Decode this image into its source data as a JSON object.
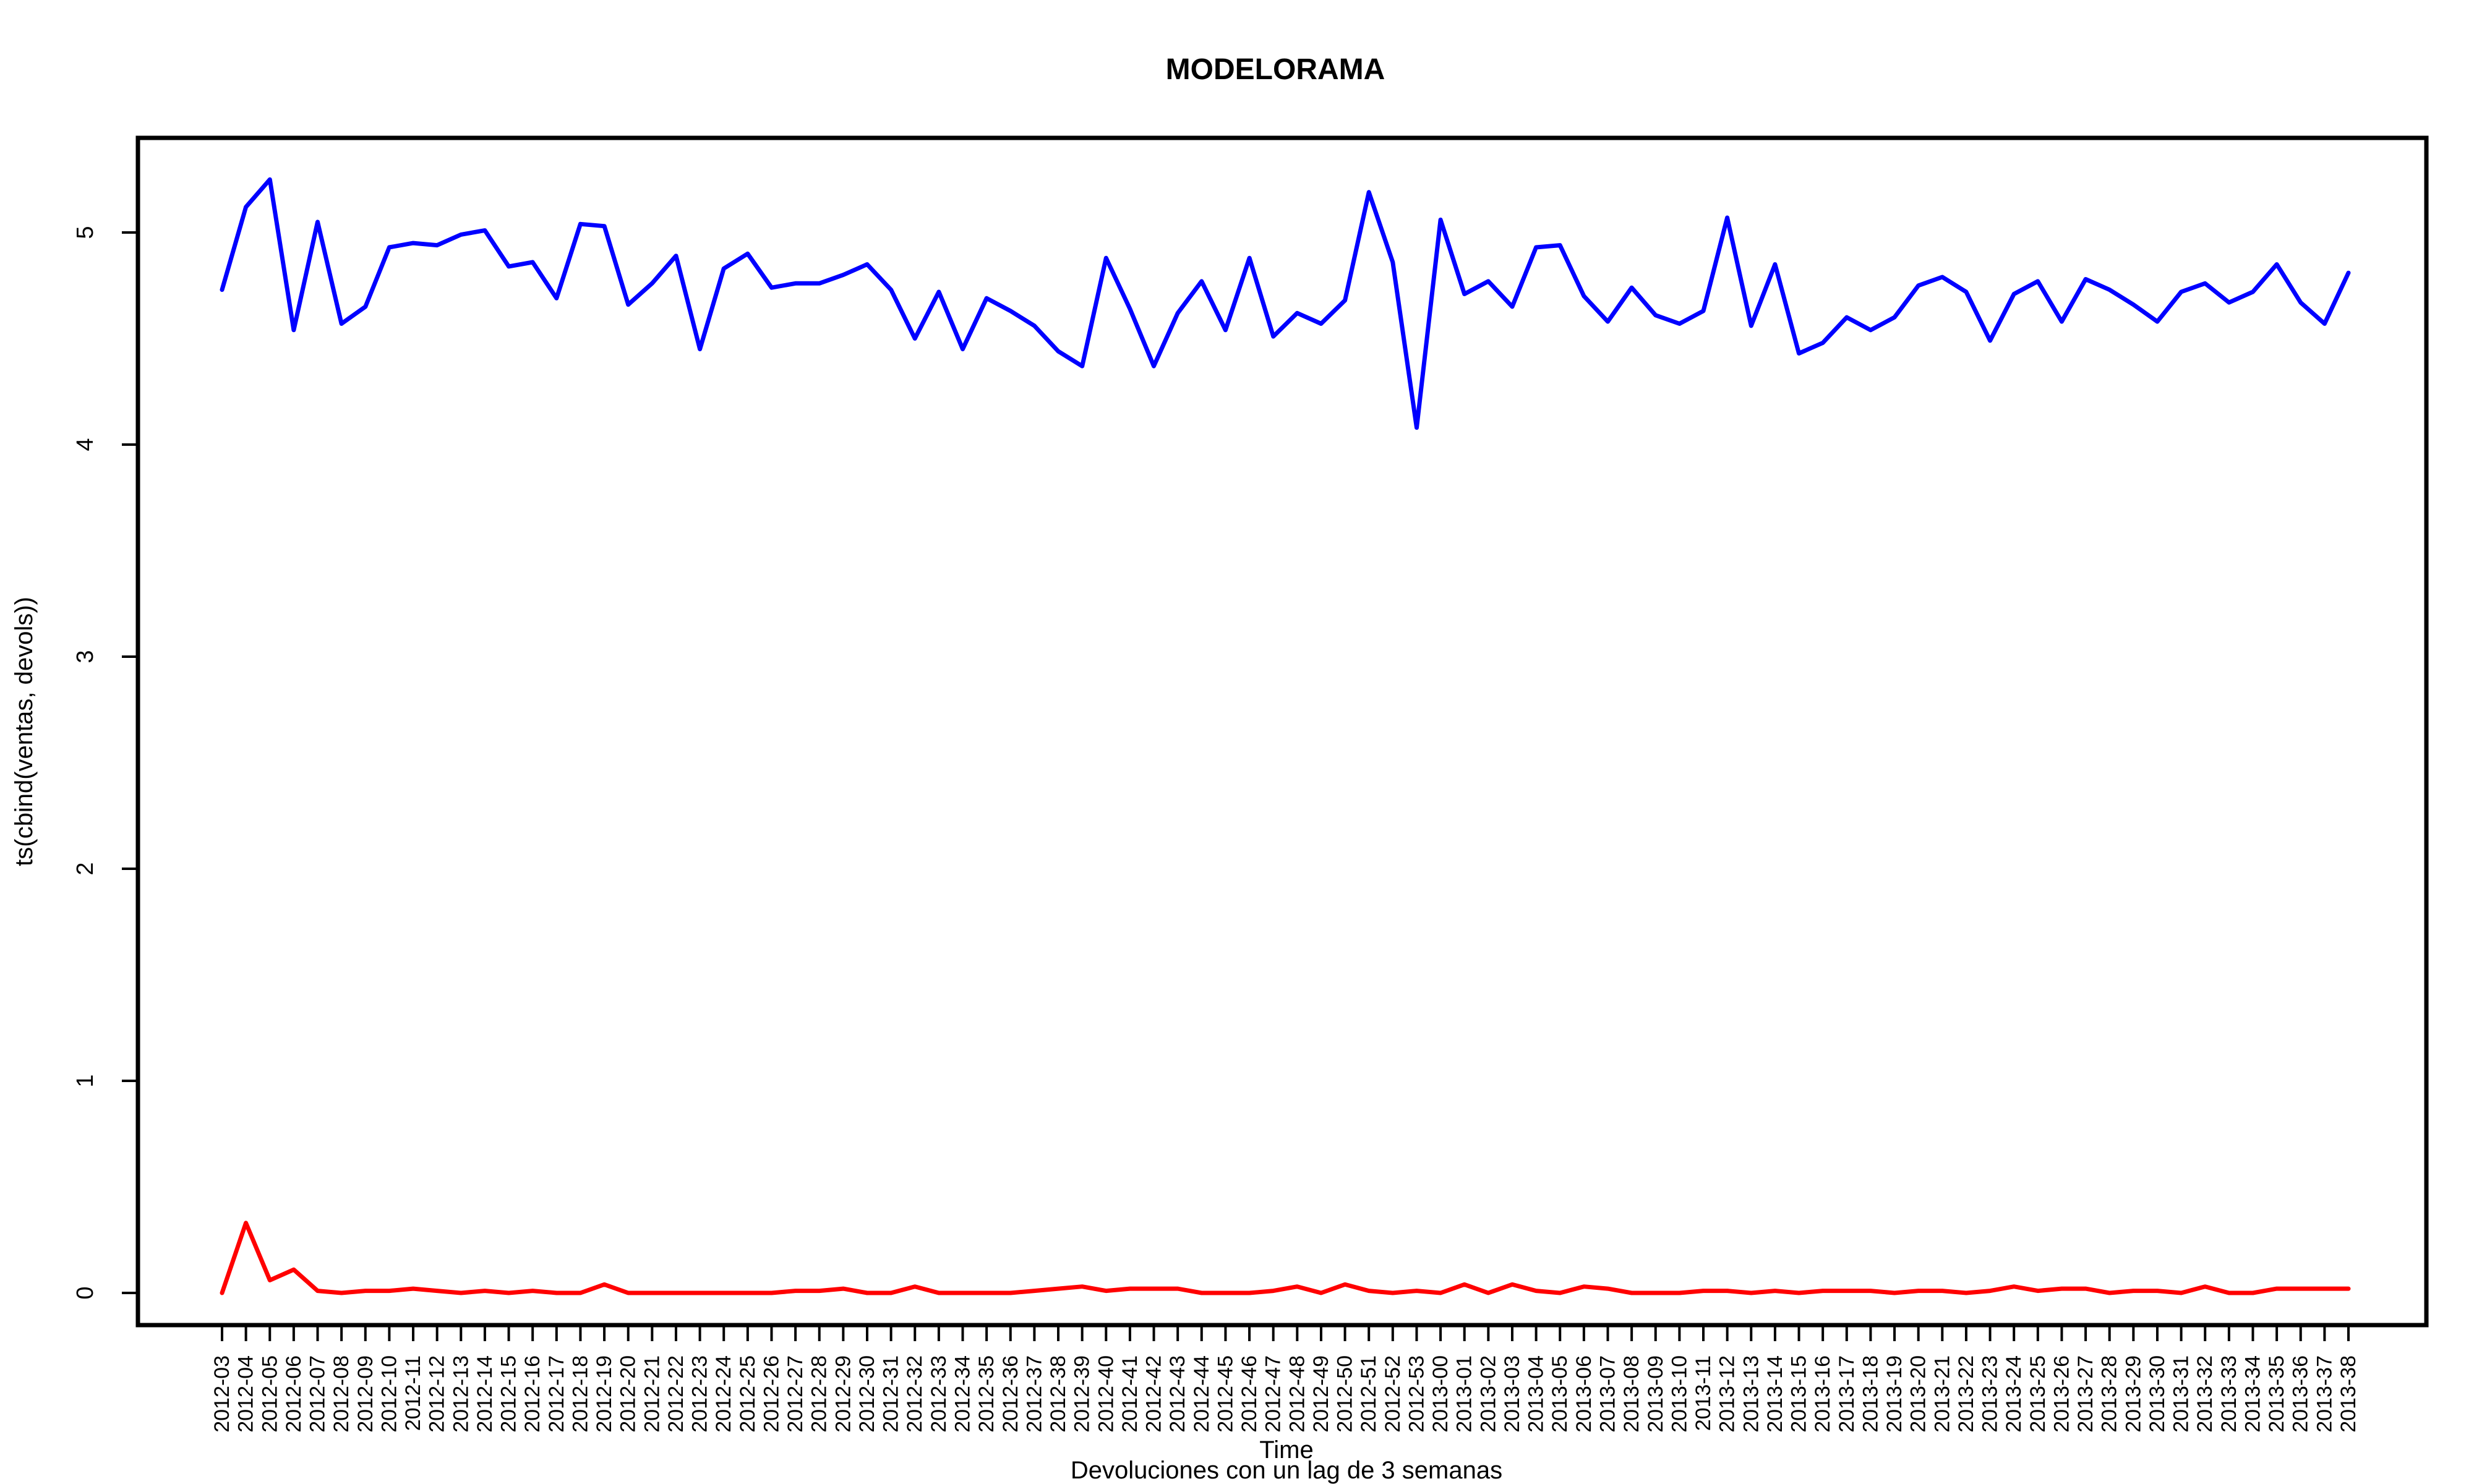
{
  "chart_data": {
    "type": "line",
    "title": "MODELORAMA",
    "xlabel": "Time",
    "ylabel": "ts(cbind(ventas, devols))",
    "caption": "Devoluciones con un lag de 3 semanas",
    "ylim": [
      -0.2,
      5.45
    ],
    "yticks": [
      0,
      1,
      2,
      3,
      4,
      5
    ],
    "grid": false,
    "legend": "none",
    "categories": [
      "2012-03",
      "2012-04",
      "2012-05",
      "2012-06",
      "2012-07",
      "2012-08",
      "2012-09",
      "2012-10",
      "2012-11",
      "2012-12",
      "2012-13",
      "2012-14",
      "2012-15",
      "2012-16",
      "2012-17",
      "2012-18",
      "2012-19",
      "2012-20",
      "2012-21",
      "2012-22",
      "2012-23",
      "2012-24",
      "2012-25",
      "2012-26",
      "2012-27",
      "2012-28",
      "2012-29",
      "2012-30",
      "2012-31",
      "2012-32",
      "2012-33",
      "2012-34",
      "2012-35",
      "2012-36",
      "2012-37",
      "2012-38",
      "2012-39",
      "2012-40",
      "2012-41",
      "2012-42",
      "2012-43",
      "2012-44",
      "2012-45",
      "2012-46",
      "2012-47",
      "2012-48",
      "2012-49",
      "2012-50",
      "2012-51",
      "2012-52",
      "2012-53",
      "2013-00",
      "2013-01",
      "2013-02",
      "2013-03",
      "2013-04",
      "2013-05",
      "2013-06",
      "2013-07",
      "2013-08",
      "2013-09",
      "2013-10",
      "2013-11",
      "2013-12",
      "2013-13",
      "2013-14",
      "2013-15",
      "2013-16",
      "2013-17",
      "2013-18",
      "2013-19",
      "2013-20",
      "2013-21",
      "2013-22",
      "2013-23",
      "2013-24",
      "2013-25",
      "2013-26",
      "2013-27",
      "2013-28",
      "2013-29",
      "2013-30",
      "2013-31",
      "2013-32",
      "2013-33",
      "2013-34",
      "2013-35",
      "2013-36",
      "2013-37",
      "2013-38"
    ],
    "series": [
      {
        "color": "#0000ff",
        "values": [
          4.73,
          5.12,
          5.25,
          4.54,
          5.05,
          4.57,
          4.65,
          4.93,
          4.95,
          4.94,
          4.99,
          5.01,
          4.84,
          4.86,
          4.69,
          5.04,
          5.03,
          4.66,
          4.76,
          4.89,
          4.45,
          4.83,
          4.9,
          4.74,
          4.76,
          4.76,
          4.8,
          4.85,
          4.73,
          4.5,
          4.72,
          4.45,
          4.69,
          4.63,
          4.56,
          4.44,
          4.37,
          4.88,
          4.64,
          4.37,
          4.62,
          4.77,
          4.54,
          4.88,
          4.51,
          4.62,
          4.57,
          4.68,
          5.19,
          4.86,
          4.08,
          5.06,
          4.71,
          4.77,
          4.65,
          4.93,
          4.94,
          4.7,
          4.58,
          4.74,
          4.61,
          4.57,
          4.63,
          5.07,
          4.56,
          4.85,
          4.43,
          4.48,
          4.6,
          4.54,
          4.6,
          4.75,
          4.79,
          4.72,
          4.49,
          4.71,
          4.77,
          4.58,
          4.78,
          4.73,
          4.66,
          4.58,
          4.72,
          4.76,
          4.67,
          4.72,
          4.85,
          4.67,
          4.57,
          4.81
        ]
      },
      {
        "color": "#ff0000",
        "values": [
          0.0,
          0.33,
          0.06,
          0.11,
          0.01,
          0.0,
          0.01,
          0.01,
          0.02,
          0.01,
          0.0,
          0.01,
          0.0,
          0.01,
          0.0,
          0.0,
          0.04,
          0.0,
          0.0,
          0.0,
          0.0,
          0.0,
          0.0,
          0.0,
          0.01,
          0.01,
          0.02,
          0.0,
          0.0,
          0.03,
          0.0,
          0.0,
          0.0,
          0.0,
          0.01,
          0.02,
          0.03,
          0.01,
          0.02,
          0.02,
          0.02,
          0.0,
          0.0,
          0.0,
          0.01,
          0.03,
          0.0,
          0.04,
          0.01,
          0.0,
          0.01,
          0.0,
          0.04,
          0.0,
          0.04,
          0.01,
          0.0,
          0.03,
          0.02,
          0.0,
          0.0,
          0.0,
          0.01,
          0.01,
          0.0,
          0.01,
          0.0,
          0.01,
          0.01,
          0.01,
          0.0,
          0.01,
          0.01,
          0.0,
          0.01,
          0.03,
          0.01,
          0.02,
          0.02,
          0.0,
          0.01,
          0.01,
          0.0,
          0.03,
          0.0,
          0.0,
          0.02,
          0.02,
          0.02,
          0.02
        ]
      }
    ]
  }
}
